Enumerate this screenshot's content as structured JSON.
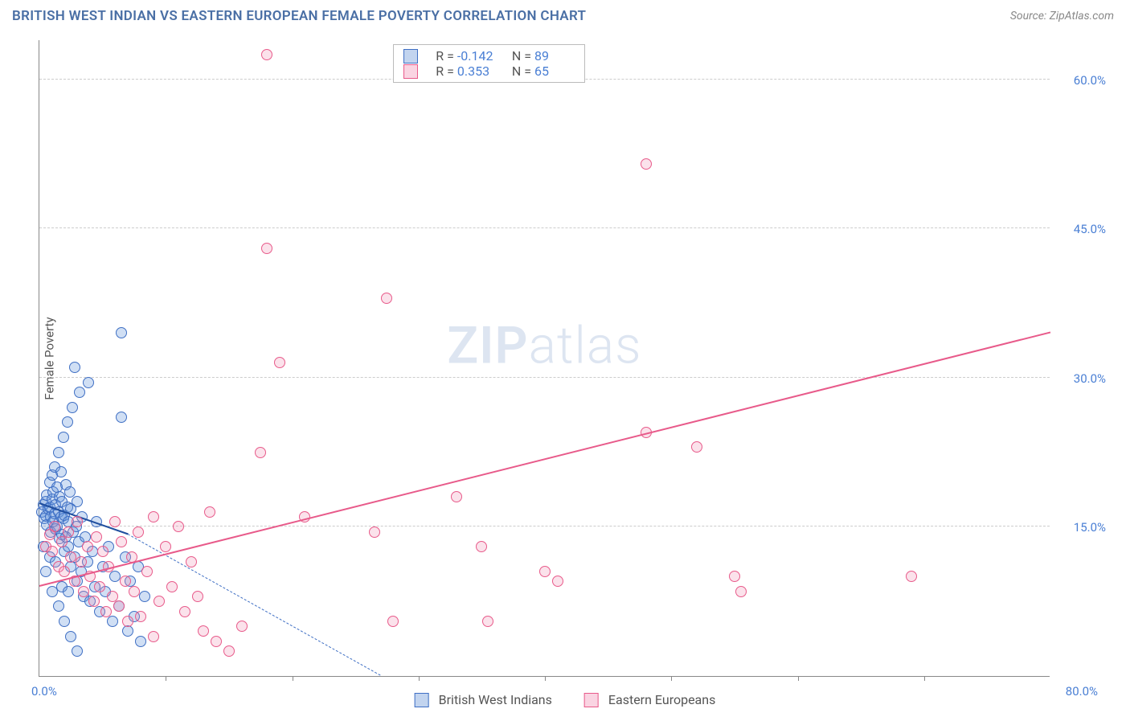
{
  "header": {
    "title": "BRITISH WEST INDIAN VS EASTERN EUROPEAN FEMALE POVERTY CORRELATION CHART",
    "source": "Source: ZipAtlas.com"
  },
  "watermark": {
    "zip": "ZIP",
    "atlas": "atlas"
  },
  "chart": {
    "type": "scatter",
    "ylabel": "Female Poverty",
    "xlim": [
      0,
      80
    ],
    "ylim": [
      0,
      64
    ],
    "xtick_marks": [
      10,
      20,
      30,
      40,
      50,
      60,
      70
    ],
    "xtick_labels": [
      {
        "v": 0,
        "label": "0.0%"
      },
      {
        "v": 80,
        "label": "80.0%"
      }
    ],
    "ytick_labels": [
      {
        "v": 15,
        "label": "15.0%"
      },
      {
        "v": 30,
        "label": "30.0%"
      },
      {
        "v": 45,
        "label": "45.0%"
      },
      {
        "v": 60,
        "label": "60.0%"
      }
    ],
    "grid_color": "#cccccc",
    "background_color": "#ffffff",
    "marker_radius": 7,
    "marker_stroke_width": 1.5,
    "marker_fill_opacity": 0.25,
    "series": [
      {
        "name": "British West Indians",
        "color_stroke": "#3f6fc4",
        "color_fill": "rgba(100,150,220,0.3)",
        "swatch_border": "#3f6fc4",
        "swatch_fill": "rgba(120,160,220,0.45)",
        "r_label": "R =",
        "r_value": "-0.142",
        "n_label": "N =",
        "n_value": "89",
        "trend": {
          "x1": 0,
          "y1": 17.3,
          "x2": 7,
          "y2": 14.2,
          "solid_color": "#1f4e9e",
          "dash_to_x": 27,
          "dash_to_y": 0
        },
        "points": [
          [
            0.2,
            16.5
          ],
          [
            0.3,
            17.2
          ],
          [
            0.4,
            15.8
          ],
          [
            0.5,
            16.1
          ],
          [
            0.5,
            17.5
          ],
          [
            0.6,
            18.2
          ],
          [
            0.6,
            15.2
          ],
          [
            0.7,
            16.8
          ],
          [
            0.8,
            17.0
          ],
          [
            0.8,
            19.5
          ],
          [
            0.9,
            14.5
          ],
          [
            0.9,
            16.0
          ],
          [
            1.0,
            17.8
          ],
          [
            1.0,
            20.2
          ],
          [
            1.1,
            15.5
          ],
          [
            1.1,
            18.5
          ],
          [
            1.2,
            16.3
          ],
          [
            1.2,
            21.0
          ],
          [
            1.3,
            14.8
          ],
          [
            1.3,
            17.2
          ],
          [
            1.4,
            19.0
          ],
          [
            1.4,
            15.0
          ],
          [
            1.5,
            16.5
          ],
          [
            1.5,
            22.5
          ],
          [
            1.6,
            13.8
          ],
          [
            1.6,
            18.0
          ],
          [
            1.7,
            16.0
          ],
          [
            1.7,
            20.5
          ],
          [
            1.8,
            14.2
          ],
          [
            1.8,
            17.5
          ],
          [
            1.9,
            15.8
          ],
          [
            1.9,
            24.0
          ],
          [
            2.0,
            12.5
          ],
          [
            2.0,
            16.2
          ],
          [
            2.1,
            19.2
          ],
          [
            2.1,
            14.0
          ],
          [
            2.2,
            17.0
          ],
          [
            2.2,
            25.5
          ],
          [
            2.3,
            13.0
          ],
          [
            2.3,
            15.5
          ],
          [
            2.4,
            18.5
          ],
          [
            2.5,
            11.0
          ],
          [
            2.5,
            16.8
          ],
          [
            2.6,
            27.0
          ],
          [
            2.7,
            14.5
          ],
          [
            2.8,
            12.0
          ],
          [
            2.8,
            31.0
          ],
          [
            2.9,
            15.0
          ],
          [
            3.0,
            9.5
          ],
          [
            3.0,
            17.5
          ],
          [
            3.1,
            13.5
          ],
          [
            3.2,
            28.5
          ],
          [
            3.3,
            10.5
          ],
          [
            3.4,
            16.0
          ],
          [
            3.5,
            8.0
          ],
          [
            3.6,
            14.0
          ],
          [
            3.8,
            11.5
          ],
          [
            3.9,
            29.5
          ],
          [
            4.0,
            7.5
          ],
          [
            4.2,
            12.5
          ],
          [
            4.4,
            9.0
          ],
          [
            4.5,
            15.5
          ],
          [
            4.8,
            6.5
          ],
          [
            5.0,
            11.0
          ],
          [
            5.2,
            8.5
          ],
          [
            5.5,
            13.0
          ],
          [
            5.8,
            5.5
          ],
          [
            6.0,
            10.0
          ],
          [
            6.3,
            7.0
          ],
          [
            6.5,
            26.0
          ],
          [
            6.8,
            12.0
          ],
          [
            7.0,
            4.5
          ],
          [
            7.2,
            9.5
          ],
          [
            7.5,
            6.0
          ],
          [
            7.8,
            11.0
          ],
          [
            8.0,
            3.5
          ],
          [
            8.3,
            8.0
          ],
          [
            0.5,
            10.5
          ],
          [
            0.8,
            12.0
          ],
          [
            1.0,
            8.5
          ],
          [
            1.3,
            11.5
          ],
          [
            1.5,
            7.0
          ],
          [
            1.8,
            9.0
          ],
          [
            2.0,
            5.5
          ],
          [
            2.3,
            8.5
          ],
          [
            2.5,
            4.0
          ],
          [
            6.5,
            34.5
          ],
          [
            3.0,
            2.5
          ],
          [
            0.3,
            13.0
          ]
        ]
      },
      {
        "name": "Eastern Europeans",
        "color_stroke": "#e85a8a",
        "color_fill": "rgba(240,140,175,0.25)",
        "swatch_border": "#e85a8a",
        "swatch_fill": "rgba(245,160,190,0.45)",
        "r_label": "R =",
        "r_value": "0.353",
        "n_label": "N =",
        "n_value": "65",
        "trend": {
          "x1": 0,
          "y1": 9.0,
          "x2": 80,
          "y2": 34.5,
          "solid_color": "#e85a8a"
        },
        "points": [
          [
            0.5,
            13.0
          ],
          [
            0.8,
            14.2
          ],
          [
            1.0,
            12.5
          ],
          [
            1.2,
            15.0
          ],
          [
            1.5,
            11.0
          ],
          [
            1.8,
            13.5
          ],
          [
            2.0,
            10.5
          ],
          [
            2.3,
            14.5
          ],
          [
            2.5,
            12.0
          ],
          [
            2.8,
            9.5
          ],
          [
            3.0,
            15.5
          ],
          [
            3.3,
            11.5
          ],
          [
            3.5,
            8.5
          ],
          [
            3.8,
            13.0
          ],
          [
            4.0,
            10.0
          ],
          [
            4.3,
            7.5
          ],
          [
            4.5,
            14.0
          ],
          [
            4.8,
            9.0
          ],
          [
            5.0,
            12.5
          ],
          [
            5.3,
            6.5
          ],
          [
            5.5,
            11.0
          ],
          [
            5.8,
            8.0
          ],
          [
            6.0,
            15.5
          ],
          [
            6.3,
            7.0
          ],
          [
            6.5,
            13.5
          ],
          [
            6.8,
            9.5
          ],
          [
            7.0,
            5.5
          ],
          [
            7.3,
            12.0
          ],
          [
            7.5,
            8.5
          ],
          [
            7.8,
            14.5
          ],
          [
            8.0,
            6.0
          ],
          [
            8.5,
            10.5
          ],
          [
            9.0,
            16.0
          ],
          [
            9.5,
            7.5
          ],
          [
            10.0,
            13.0
          ],
          [
            10.5,
            9.0
          ],
          [
            11.0,
            15.0
          ],
          [
            11.5,
            6.5
          ],
          [
            12.0,
            11.5
          ],
          [
            12.5,
            8.0
          ],
          [
            13.0,
            4.5
          ],
          [
            14.0,
            3.5
          ],
          [
            15.0,
            2.5
          ],
          [
            16.0,
            5.0
          ],
          [
            17.5,
            22.5
          ],
          [
            18.0,
            43.0
          ],
          [
            18.0,
            62.5
          ],
          [
            19.0,
            31.5
          ],
          [
            21.0,
            16.0
          ],
          [
            26.5,
            14.5
          ],
          [
            27.5,
            38.0
          ],
          [
            28.0,
            5.5
          ],
          [
            33.0,
            18.0
          ],
          [
            35.0,
            13.0
          ],
          [
            35.5,
            5.5
          ],
          [
            40.0,
            10.5
          ],
          [
            41.0,
            9.5
          ],
          [
            48.0,
            51.5
          ],
          [
            48.0,
            24.5
          ],
          [
            52.0,
            23.0
          ],
          [
            55.0,
            10.0
          ],
          [
            55.5,
            8.5
          ],
          [
            69.0,
            10.0
          ],
          [
            13.5,
            16.5
          ],
          [
            9.0,
            4.0
          ]
        ]
      }
    ]
  },
  "legend": {
    "items": [
      {
        "label": "British West Indians",
        "series_idx": 0
      },
      {
        "label": "Eastern Europeans",
        "series_idx": 1
      }
    ]
  }
}
